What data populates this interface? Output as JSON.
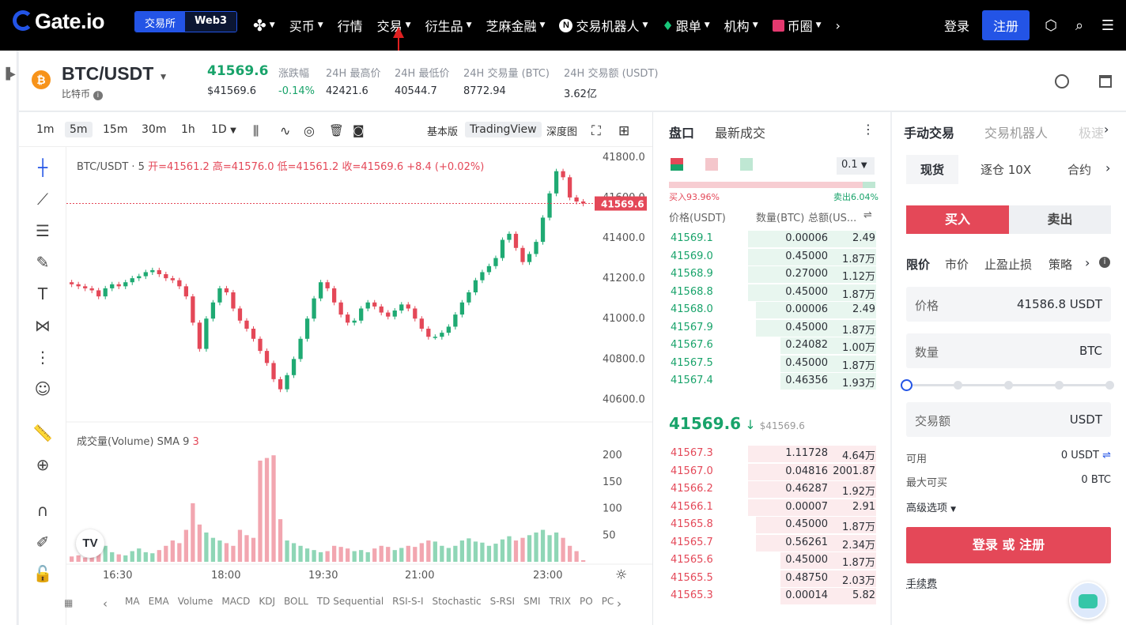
{
  "nav": {
    "brand": "Gate.io",
    "seg_exchange": "交易所",
    "seg_web3": "Web3",
    "menu": [
      "买币",
      "行情",
      "交易",
      "衍生品",
      "芝麻金融",
      "交易机器人",
      "跟单",
      "机构",
      "币圈"
    ],
    "login": "登录",
    "register": "注册"
  },
  "ticker": {
    "pair": "BTC/USDT",
    "name": "比特币",
    "price": "41569.6",
    "price_sub": "$41569.6",
    "change_label": "涨跌幅",
    "change": "-0.14%",
    "high_label": "24H 最高价",
    "high": "42421.6",
    "low_label": "24H 最低价",
    "low": "40544.7",
    "vol_label": "24H 交易量 (BTC)",
    "vol": "8772.94",
    "amt_label": "24H 交易额 (USDT)",
    "amt": "3.62亿"
  },
  "chart": {
    "timeframes": [
      "1m",
      "5m",
      "15m",
      "30m",
      "1h",
      "1D"
    ],
    "active_tf": "5m",
    "mode_basic": "基本版",
    "mode_tv": "TradingView",
    "mode_depth": "深度图",
    "ohlc_pair": "BTC/USDT · 5",
    "ohlc": "开=41561.2  高=41576.0  低=41561.2  收=41569.6  +8.4 (+0.02%)",
    "price_tag": "41569.6",
    "y_ticks": [
      "41800.0",
      "41600.0",
      "41400.0",
      "41200.0",
      "41000.0",
      "40800.0",
      "40600.0"
    ],
    "vol_label": "成交量(Volume) SMA 9",
    "vol_value": "3",
    "vol_ticks": [
      "200",
      "150",
      "100",
      "50"
    ],
    "x_ticks": [
      "16:30",
      "18:00",
      "19:30",
      "21:00",
      "23:00"
    ],
    "indicators": [
      "MA",
      "EMA",
      "Volume",
      "MACD",
      "KDJ",
      "BOLL",
      "TD Sequential",
      "RSI-S-I",
      "Stochastic",
      "S-RSI",
      "SMI",
      "TRIX",
      "PO",
      "PC"
    ]
  },
  "chart_data": {
    "type": "candlestick",
    "ylim": [
      40500,
      41850
    ],
    "close": [
      41170,
      41160,
      41150,
      41140,
      41110,
      41150,
      41170,
      41160,
      41180,
      41200,
      41210,
      41230,
      41240,
      41220,
      41200,
      41190,
      41160,
      41110,
      40980,
      40850,
      41000,
      41080,
      41150,
      41130,
      41050,
      40990,
      40950,
      40900,
      40840,
      40780,
      40700,
      40650,
      40720,
      40800,
      40900,
      41000,
      41100,
      41180,
      41150,
      41080,
      41020,
      40980,
      40990,
      41050,
      41080,
      41060,
      41030,
      41010,
      41040,
      41070,
      41050,
      41000,
      40950,
      40910,
      40910,
      40930,
      40960,
      41020,
      41080,
      41130,
      41190,
      41230,
      41260,
      41300,
      41390,
      41420,
      41350,
      41280,
      41320,
      41380,
      41500,
      41620,
      41730,
      41700,
      41600,
      41580,
      41570
    ],
    "volume": [
      10,
      12,
      8,
      15,
      22,
      30,
      18,
      14,
      12,
      20,
      25,
      18,
      16,
      22,
      30,
      40,
      35,
      60,
      110,
      70,
      55,
      45,
      40,
      35,
      30,
      60,
      50,
      45,
      190,
      195,
      200,
      80,
      40,
      35,
      30,
      25,
      22,
      18,
      20,
      30,
      28,
      25,
      20,
      22,
      18,
      25,
      30,
      28,
      22,
      26,
      30,
      28,
      35,
      40,
      38,
      30,
      26,
      30,
      40,
      44,
      38,
      36,
      30,
      34,
      42,
      48,
      40,
      45,
      50,
      55,
      60,
      50,
      55,
      45,
      30,
      20,
      3
    ]
  },
  "orderbook": {
    "tab_book": "盘口",
    "tab_trades": "最新成交",
    "precision": "0.1",
    "buy_pct": "买入93.96%",
    "sell_pct": "卖出6.04%",
    "h_price": "价格(USDT)",
    "h_qty": "数量(BTC)",
    "h_total": "总额(US...",
    "bids": [
      [
        "41569.1",
        "0.00006",
        "2.49"
      ],
      [
        "41569.0",
        "0.45000",
        "1.87万"
      ],
      [
        "41568.9",
        "0.27000",
        "1.12万"
      ],
      [
        "41568.8",
        "0.45000",
        "1.87万"
      ],
      [
        "41568.0",
        "0.00006",
        "2.49"
      ],
      [
        "41567.9",
        "0.45000",
        "1.87万"
      ],
      [
        "41567.6",
        "0.24082",
        "1.00万"
      ],
      [
        "41567.5",
        "0.45000",
        "1.87万"
      ],
      [
        "41567.4",
        "0.46356",
        "1.93万"
      ]
    ],
    "last": "41569.6",
    "last_usd": "$41569.6",
    "asks": [
      [
        "41567.3",
        "1.11728",
        "4.64万"
      ],
      [
        "41567.0",
        "0.04816",
        "2001.87"
      ],
      [
        "41566.2",
        "0.46287",
        "1.92万"
      ],
      [
        "41566.1",
        "0.00007",
        "2.91"
      ],
      [
        "41565.8",
        "0.45000",
        "1.87万"
      ],
      [
        "41565.7",
        "0.56261",
        "2.34万"
      ],
      [
        "41565.6",
        "0.45000",
        "1.87万"
      ],
      [
        "41565.5",
        "0.48750",
        "2.03万"
      ],
      [
        "41565.3",
        "0.00014",
        "5.82"
      ]
    ]
  },
  "trade": {
    "tab_manual": "手动交易",
    "tab_bot": "交易机器人",
    "tab_fast": "极速",
    "spot": "现货",
    "margin": "逐仓 10X",
    "contract": "合约",
    "buy": "买入",
    "sell": "卖出",
    "limit": "限价",
    "market": "市价",
    "tpsl": "止盈止损",
    "strategy": "策略",
    "price_label": "价格",
    "price_val": "41586.8 USDT",
    "qty_label": "数量",
    "qty_unit": "BTC",
    "amt_label": "交易额",
    "amt_unit": "USDT",
    "avail_label": "可用",
    "avail_val": "0 USDT",
    "max_label": "最大可买",
    "max_val": "0 BTC",
    "adv": "高级选项",
    "cta": "登录 或 注册",
    "fee": "手续费"
  }
}
